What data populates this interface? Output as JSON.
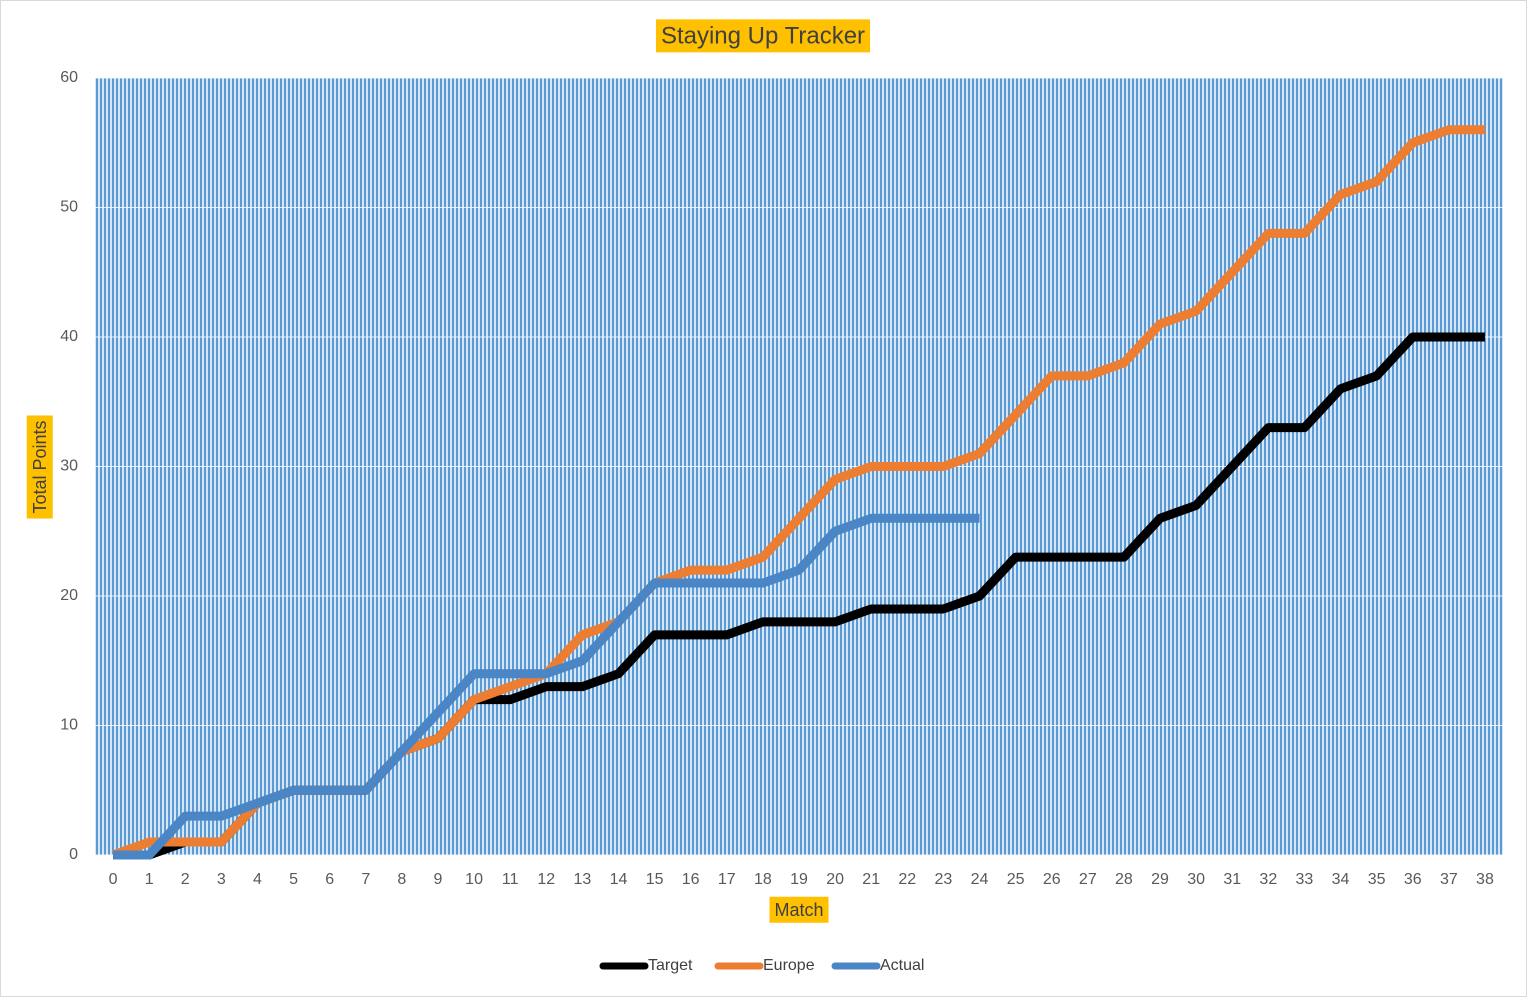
{
  "chart_data": {
    "type": "line",
    "title": "Staying Up Tracker",
    "x_label": "Match",
    "y_label": "Total Points",
    "categories": [
      0,
      1,
      2,
      3,
      4,
      5,
      6,
      7,
      8,
      9,
      10,
      11,
      12,
      13,
      14,
      15,
      16,
      17,
      18,
      19,
      20,
      21,
      22,
      23,
      24,
      25,
      26,
      27,
      28,
      29,
      30,
      31,
      32,
      33,
      34,
      35,
      36,
      37,
      38
    ],
    "series": [
      {
        "name": "Target",
        "color": "#000000",
        "values": [
          0,
          0,
          1,
          1,
          4,
          5,
          5,
          5,
          8,
          9,
          12,
          12,
          13,
          13,
          14,
          17,
          17,
          17,
          18,
          18,
          18,
          19,
          19,
          19,
          20,
          23,
          23,
          23,
          23,
          26,
          27,
          30,
          33,
          33,
          36,
          37,
          40,
          40,
          40
        ]
      },
      {
        "name": "Europe",
        "color": "#ed7d31",
        "values": [
          0,
          1,
          1,
          1,
          4,
          5,
          5,
          5,
          8,
          9,
          12,
          13,
          14,
          17,
          18,
          21,
          22,
          22,
          23,
          26,
          29,
          30,
          30,
          30,
          31,
          34,
          37,
          37,
          38,
          41,
          42,
          45,
          48,
          48,
          51,
          52,
          55,
          56,
          56
        ]
      },
      {
        "name": "Actual",
        "color": "#4a86c5",
        "values": [
          0,
          0,
          3,
          3,
          4,
          5,
          5,
          5,
          8,
          11,
          14,
          14,
          14,
          15,
          18,
          21,
          21,
          21,
          21,
          22,
          25,
          26,
          26,
          26,
          26,
          null,
          null,
          null,
          null,
          null,
          null,
          null,
          null,
          null,
          null,
          null,
          null,
          null,
          null
        ]
      }
    ],
    "ylim": [
      0,
      60
    ],
    "yticks": [
      0,
      10,
      20,
      30,
      40,
      50,
      60
    ],
    "grid": true,
    "legend": "bottom"
  }
}
